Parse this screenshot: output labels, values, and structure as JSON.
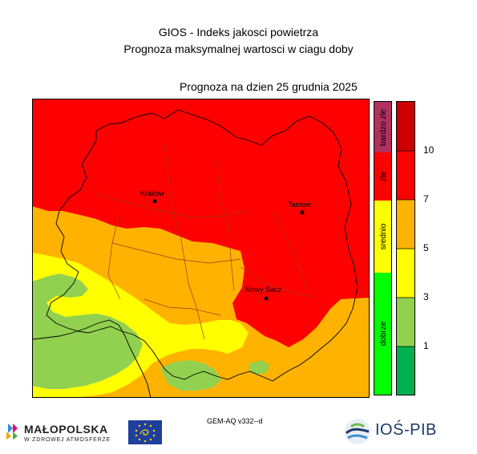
{
  "header": {
    "title_line1": "GIOS - Indeks jakosci powietrza",
    "title_line2": "Prognoza maksymalnej wartosci w ciagu doby",
    "forecast_date": "Prognoza na dzien  25 grudnia 2025"
  },
  "map": {
    "cities": [
      {
        "name": "Krakow"
      },
      {
        "name": "Tarnow"
      },
      {
        "name": "Nowy Sacz"
      }
    ]
  },
  "legend": {
    "categories": [
      {
        "label": "bardzo zle",
        "color": "#b03060"
      },
      {
        "label": "zle",
        "color": "#ff0000"
      },
      {
        "label": "srednio",
        "color": "#ffff00"
      },
      {
        "label": "dobrze",
        "color": "#00ff00"
      }
    ],
    "scale_colors": [
      "#cc0000",
      "#ff0000",
      "#ffb300",
      "#ffff00",
      "#92d050",
      "#00b050"
    ],
    "scale_ticks": [
      "10",
      "7",
      "5",
      "3",
      "1"
    ],
    "class_colors": {
      "very_bad": "#ff0000",
      "bad": "#ffb300",
      "moderate": "#ffff00",
      "good": "#92d050"
    }
  },
  "footer": {
    "model_label": "GEM-AQ v332--d",
    "malopolska_name": "MAŁOPOLSKA",
    "malopolska_tagline": "W ZDROWEJ ATMOSFERZE",
    "ios_name": "IOŚ-PIB"
  }
}
